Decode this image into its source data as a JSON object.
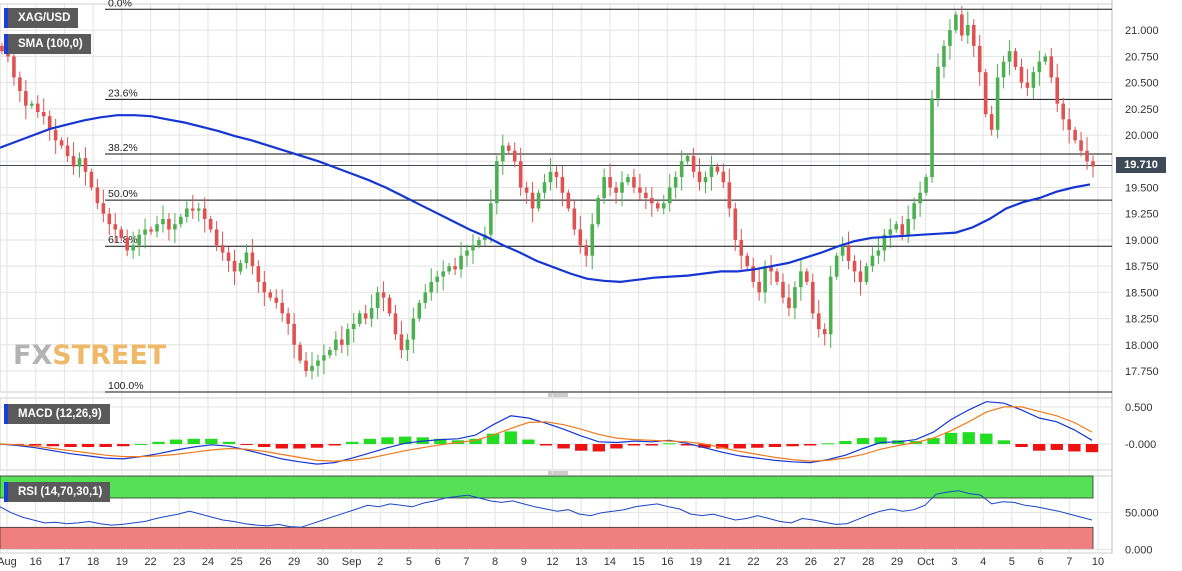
{
  "instrument": "XAG/USD",
  "indicators": {
    "sma_label": "SMA (100,0)",
    "macd_label": "MACD (12,26,9)",
    "rsi_label": "RSI (14,70,30,1)"
  },
  "last_price": "19.710",
  "watermark": {
    "part1": "FX",
    "part2": "STREET"
  },
  "colors": {
    "up": "#4caf50",
    "down": "#e05252",
    "sma": "#1536d4",
    "macd": "#1536d4",
    "signal": "#f07b1e",
    "hist_up": "#22dd22",
    "hist_down": "#ee1111",
    "rsi": "#1a45c9",
    "rsi_overbought": "#55e055",
    "rsi_oversold": "#f08080",
    "grid": "#e3e3e3"
  },
  "chart_data": [
    {
      "type": "candlestick",
      "title": "XAG/USD",
      "price_axis_ticks": [
        "21.000",
        "20.750",
        "20.500",
        "20.250",
        "20.000",
        "19.750",
        "19.500",
        "19.250",
        "19.000",
        "18.750",
        "18.500",
        "18.250",
        "18.000",
        "17.750"
      ],
      "ylim": [
        17.55,
        21.25
      ],
      "date_labels": [
        "Aug",
        "16",
        "17",
        "18",
        "19",
        "22",
        "23",
        "24",
        "25",
        "26",
        "29",
        "30",
        "Sep",
        "2",
        "5",
        "6",
        "7",
        "8",
        "9",
        "12",
        "13",
        "14",
        "15",
        "16",
        "19",
        "21",
        "22",
        "23",
        "26",
        "27",
        "28",
        "29",
        "Oct",
        "3",
        "4",
        "5",
        "6",
        "7",
        "10"
      ],
      "fibonacci": [
        {
          "label": "0.0%",
          "price": 21.2
        },
        {
          "label": "23.6%",
          "price": 20.34
        },
        {
          "label": "38.2%",
          "price": 19.82
        },
        {
          "label": "50.0%",
          "price": 19.38
        },
        {
          "label": "61.8%",
          "price": 18.94
        },
        {
          "label": "100.0%",
          "price": 17.55
        }
      ],
      "highlight_price": 19.71,
      "close": [
        20.8,
        20.75,
        20.55,
        20.42,
        20.28,
        20.3,
        20.22,
        20.18,
        20.05,
        19.95,
        19.9,
        19.8,
        19.7,
        19.78,
        19.65,
        19.5,
        19.35,
        19.25,
        19.15,
        19.1,
        19.02,
        18.9,
        18.95,
        19.05,
        19.1,
        19.08,
        19.15,
        19.2,
        19.1,
        19.15,
        19.22,
        19.3,
        19.28,
        19.3,
        19.2,
        19.1,
        18.95,
        18.88,
        18.8,
        18.7,
        18.78,
        18.88,
        18.75,
        18.6,
        18.5,
        18.45,
        18.4,
        18.3,
        18.2,
        18.0,
        17.85,
        17.75,
        17.8,
        17.85,
        17.9,
        17.95,
        18.05,
        18.0,
        18.15,
        18.2,
        18.3,
        18.25,
        18.35,
        18.5,
        18.45,
        18.3,
        18.1,
        17.95,
        18.05,
        18.25,
        18.4,
        18.5,
        18.6,
        18.65,
        18.7,
        18.75,
        18.72,
        18.85,
        18.9,
        18.95,
        19.0,
        19.05,
        19.35,
        19.75,
        19.9,
        19.85,
        19.75,
        19.5,
        19.45,
        19.3,
        19.45,
        19.55,
        19.65,
        19.6,
        19.45,
        19.3,
        19.1,
        18.95,
        18.85,
        19.15,
        19.4,
        19.6,
        19.5,
        19.45,
        19.55,
        19.6,
        19.5,
        19.45,
        19.4,
        19.35,
        19.3,
        19.35,
        19.5,
        19.6,
        19.75,
        19.8,
        19.65,
        19.55,
        19.6,
        19.7,
        19.65,
        19.55,
        19.3,
        19.0,
        18.85,
        18.75,
        18.6,
        18.5,
        18.75,
        18.7,
        18.6,
        18.45,
        18.35,
        18.55,
        18.7,
        18.6,
        18.3,
        18.15,
        18.1,
        18.65,
        18.85,
        18.95,
        18.8,
        18.7,
        18.6,
        18.75,
        18.85,
        18.9,
        19.05,
        19.1,
        19.15,
        19.05,
        19.2,
        19.35,
        19.45,
        19.6,
        20.35,
        20.65,
        20.85,
        21.0,
        21.15,
        20.95,
        21.05,
        20.85,
        20.6,
        20.2,
        20.05,
        20.55,
        20.7,
        20.8,
        20.65,
        20.5,
        20.45,
        20.6,
        20.7,
        20.75,
        20.55,
        20.3,
        20.15,
        20.05,
        19.95,
        19.85,
        19.75,
        19.7
      ],
      "sma_100": [
        19.88,
        19.94,
        20.0,
        20.06,
        20.1,
        20.14,
        20.17,
        20.19,
        20.19,
        20.18,
        20.15,
        20.12,
        20.08,
        20.04,
        19.99,
        19.95,
        19.9,
        19.85,
        19.8,
        19.75,
        19.69,
        19.63,
        19.57,
        19.5,
        19.42,
        19.34,
        19.26,
        19.18,
        19.1,
        19.03,
        18.95,
        18.88,
        18.8,
        18.74,
        18.68,
        18.63,
        18.61,
        18.6,
        18.62,
        18.64,
        18.65,
        18.66,
        18.68,
        18.7,
        18.7,
        18.72,
        18.75,
        18.78,
        18.83,
        18.88,
        18.94,
        18.99,
        19.02,
        19.03,
        19.04,
        19.05,
        19.06,
        19.07,
        19.12,
        19.2,
        19.3,
        19.36,
        19.4,
        19.46,
        19.5,
        19.53
      ],
      "series": [
        {
          "name": "SMA (100,0)"
        }
      ]
    },
    {
      "type": "macd",
      "title": "MACD (12,26,9)",
      "ticks": [
        "0.500",
        "-0.000"
      ],
      "ylim": [
        -0.35,
        0.62
      ],
      "series": [
        {
          "name": "MACD",
          "values": [
            0.0,
            -0.02,
            -0.05,
            -0.09,
            -0.13,
            -0.16,
            -0.19,
            -0.2,
            -0.17,
            -0.13,
            -0.08,
            -0.04,
            -0.01,
            -0.03,
            -0.08,
            -0.14,
            -0.2,
            -0.24,
            -0.27,
            -0.25,
            -0.19,
            -0.12,
            -0.05,
            0.01,
            0.04,
            0.06,
            0.07,
            0.12,
            0.26,
            0.38,
            0.35,
            0.28,
            0.2,
            0.11,
            0.03,
            0.02,
            0.04,
            0.03,
            0.05,
            0.01,
            -0.05,
            -0.11,
            -0.16,
            -0.19,
            -0.22,
            -0.24,
            -0.25,
            -0.21,
            -0.15,
            -0.06,
            0.02,
            0.03,
            0.06,
            0.16,
            0.33,
            0.46,
            0.57,
            0.55,
            0.46,
            0.35,
            0.3,
            0.19,
            0.05
          ]
        },
        {
          "name": "Signal",
          "values": [
            0.0,
            -0.01,
            -0.03,
            -0.06,
            -0.09,
            -0.12,
            -0.15,
            -0.17,
            -0.17,
            -0.16,
            -0.14,
            -0.11,
            -0.08,
            -0.06,
            -0.07,
            -0.1,
            -0.14,
            -0.18,
            -0.22,
            -0.23,
            -0.22,
            -0.19,
            -0.14,
            -0.09,
            -0.05,
            -0.01,
            0.02,
            0.05,
            0.12,
            0.21,
            0.29,
            0.3,
            0.26,
            0.2,
            0.13,
            0.08,
            0.06,
            0.05,
            0.04,
            0.03,
            0.0,
            -0.05,
            -0.1,
            -0.14,
            -0.18,
            -0.21,
            -0.23,
            -0.22,
            -0.19,
            -0.14,
            -0.07,
            -0.02,
            0.02,
            0.08,
            0.18,
            0.3,
            0.43,
            0.5,
            0.5,
            0.44,
            0.38,
            0.29,
            0.16
          ]
        },
        {
          "name": "Histogram",
          "values": [
            0.0,
            -0.01,
            -0.02,
            -0.03,
            -0.04,
            -0.04,
            -0.04,
            -0.03,
            0.0,
            0.03,
            0.06,
            0.07,
            0.07,
            0.03,
            -0.01,
            -0.04,
            -0.06,
            -0.06,
            -0.05,
            -0.02,
            0.03,
            0.07,
            0.09,
            0.1,
            0.09,
            0.07,
            0.05,
            0.07,
            0.14,
            0.17,
            0.06,
            -0.02,
            -0.06,
            -0.09,
            -0.1,
            -0.06,
            -0.02,
            -0.02,
            0.01,
            -0.02,
            -0.05,
            -0.06,
            -0.06,
            -0.05,
            -0.04,
            -0.03,
            -0.02,
            0.01,
            0.04,
            0.08,
            0.09,
            0.05,
            0.04,
            0.08,
            0.15,
            0.16,
            0.14,
            0.05,
            -0.04,
            -0.09,
            -0.08,
            -0.1,
            -0.11
          ]
        }
      ]
    },
    {
      "type": "rsi",
      "title": "RSI (14,70,30,1)",
      "ticks": [
        "50.000",
        "0.000"
      ],
      "ylim": [
        -5,
        100
      ],
      "overbought": 70,
      "oversold": 30,
      "values": [
        58,
        50,
        44,
        40,
        36,
        37,
        35,
        36,
        38,
        35,
        33,
        34,
        36,
        38,
        42,
        45,
        48,
        52,
        48,
        44,
        40,
        38,
        35,
        33,
        32,
        34,
        31,
        30,
        35,
        40,
        45,
        50,
        55,
        60,
        58,
        62,
        60,
        58,
        63,
        66,
        70,
        72,
        74,
        70,
        66,
        64,
        66,
        62,
        58,
        55,
        52,
        54,
        48,
        46,
        50,
        52,
        54,
        58,
        60,
        62,
        58,
        55,
        48,
        46,
        48,
        44,
        40,
        42,
        46,
        42,
        38,
        36,
        42,
        40,
        37,
        34,
        35,
        41,
        47,
        52,
        55,
        52,
        54,
        60,
        75,
        78,
        80,
        76,
        74,
        62,
        65,
        64,
        60,
        58,
        55,
        52,
        48,
        44,
        40
      ]
    }
  ]
}
